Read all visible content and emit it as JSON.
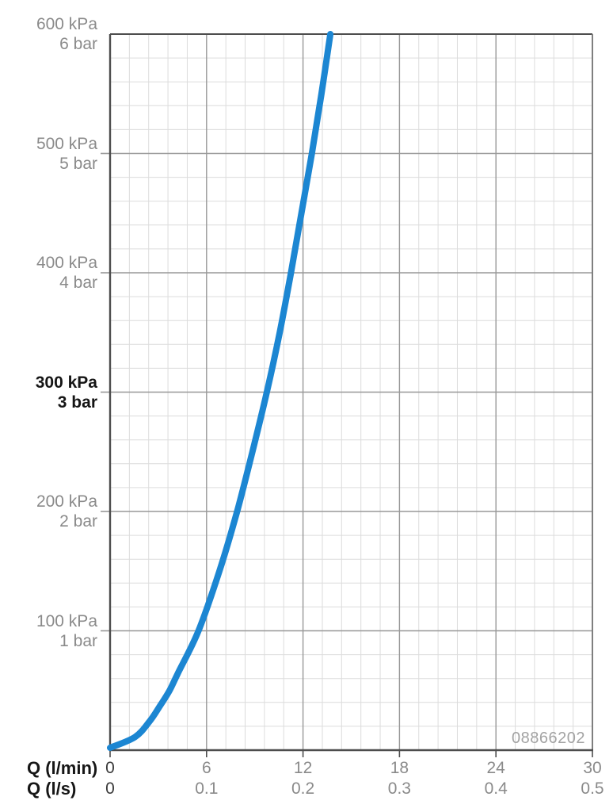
{
  "chart_data": {
    "type": "line",
    "x_axis": {
      "label_primary": "Q (l/min)",
      "label_secondary": "Q (l/s)",
      "min": 0,
      "max": 30,
      "major_step": 6,
      "minor_step": 1.2,
      "ticks_lmin": [
        "0",
        "6",
        "12",
        "18",
        "24",
        "30"
      ],
      "ticks_ls": [
        "0",
        "0.1",
        "0.2",
        "0.3",
        "0.4",
        "0.5"
      ]
    },
    "y_axis": {
      "unit_primary": "kPa",
      "unit_secondary": "bar",
      "min": 0,
      "max": 600,
      "major_step": 100,
      "minor_step": 20,
      "ticks": [
        {
          "kpa_label": "600 kPa",
          "bar_label": "6 bar",
          "value_kpa": 600,
          "emphasis": false
        },
        {
          "kpa_label": "500 kPa",
          "bar_label": "5 bar",
          "value_kpa": 500,
          "emphasis": false
        },
        {
          "kpa_label": "400 kPa",
          "bar_label": "4 bar",
          "value_kpa": 400,
          "emphasis": false
        },
        {
          "kpa_label": "300 kPa",
          "bar_label": "3 bar",
          "value_kpa": 300,
          "emphasis": true
        },
        {
          "kpa_label": "200 kPa",
          "bar_label": "2 bar",
          "value_kpa": 200,
          "emphasis": false
        },
        {
          "kpa_label": "100 kPa",
          "bar_label": "1 bar",
          "value_kpa": 100,
          "emphasis": false
        }
      ]
    },
    "series": [
      {
        "name": "flow-pressure-curve",
        "color": "#1c86d2",
        "stroke_width": 8,
        "points_p_kpa_q_lmin": [
          [
            0,
            0
          ],
          [
            11,
            1.55
          ],
          [
            24,
            2.45
          ],
          [
            37,
            3.1
          ],
          [
            50,
            3.7
          ],
          [
            64,
            4.2
          ],
          [
            100,
            5.5
          ],
          [
            150,
            6.8
          ],
          [
            200,
            7.9
          ],
          [
            250,
            8.85
          ],
          [
            300,
            9.75
          ],
          [
            350,
            10.55
          ],
          [
            400,
            11.25
          ],
          [
            450,
            11.9
          ],
          [
            500,
            12.55
          ],
          [
            550,
            13.15
          ],
          [
            600,
            13.7
          ]
        ]
      }
    ],
    "annotation": "08866202",
    "grid": {
      "minor_color": "#dcdcdc",
      "major_color": "#989898",
      "frame_color": "#4d4d4d",
      "right_frame_color": "#7f7f7f"
    },
    "legend": "none",
    "title": ""
  }
}
